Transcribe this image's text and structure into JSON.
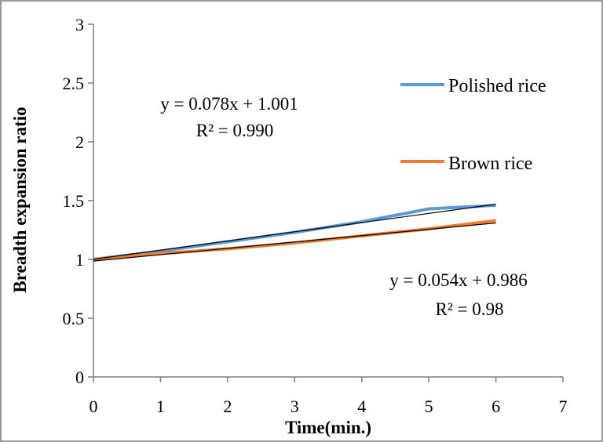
{
  "chart_data": {
    "type": "line",
    "title": "",
    "xlabel": "Time(min.)",
    "ylabel": "Breadth expansion ratio",
    "xlim": [
      0,
      7
    ],
    "ylim": [
      0,
      3
    ],
    "x_ticks": [
      "0",
      "1",
      "2",
      "3",
      "4",
      "5",
      "6",
      "7"
    ],
    "y_ticks": [
      "0",
      "0.5",
      "1",
      "1.5",
      "2",
      "2.5",
      "3"
    ],
    "grid": false,
    "legend_position": "right",
    "series": [
      {
        "name": "Polished rice",
        "color": "#5b9bd5",
        "x": [
          0,
          1,
          2,
          3,
          4,
          5,
          6
        ],
        "y": [
          1.0,
          1.07,
          1.15,
          1.23,
          1.32,
          1.43,
          1.46
        ]
      },
      {
        "name": "Brown rice",
        "color": "#ed7d31",
        "x": [
          0,
          1,
          2,
          3,
          4,
          5,
          6
        ],
        "y": [
          1.0,
          1.05,
          1.09,
          1.14,
          1.2,
          1.26,
          1.33
        ]
      }
    ],
    "trendlines": [
      {
        "slope": 0.078,
        "intercept": 1.001,
        "equation": "y = 0.078x + 1.001",
        "r2": "R² = 0.990"
      },
      {
        "slope": 0.054,
        "intercept": 0.986,
        "equation": "y = 0.054x + 0.986",
        "r2": "R² = 0.98"
      }
    ]
  }
}
